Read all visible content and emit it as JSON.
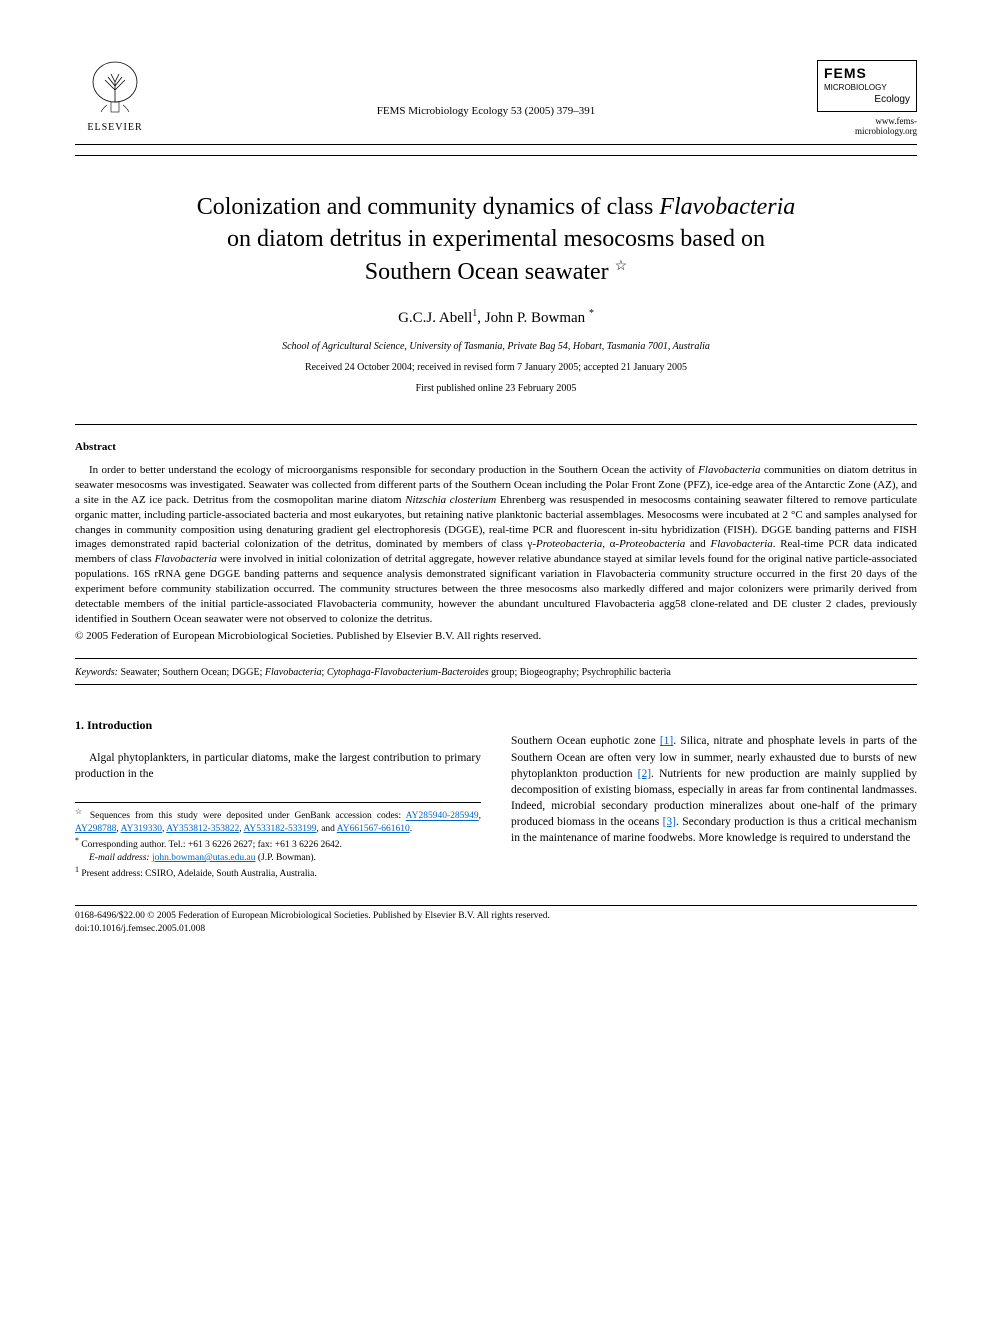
{
  "header": {
    "elsevier_label": "ELSEVIER",
    "citation": "FEMS Microbiology Ecology 53 (2005) 379–391",
    "fems_title": "FEMS",
    "fems_sub1": "MICROBIOLOGY",
    "fems_sub2": "Ecology",
    "fems_url": "www.fems-microbiology.org"
  },
  "title": {
    "line1_pre": "Colonization and community dynamics of class ",
    "line1_ital": "Flavobacteria",
    "line2": "on diatom detritus in experimental mesocosms based on",
    "line3": "Southern Ocean seawater",
    "star": "☆"
  },
  "authors": {
    "a1_name": "G.C.J. Abell",
    "a1_sup": "1",
    "sep": ", ",
    "a2_name": "John P. Bowman",
    "a2_sup": "*"
  },
  "affiliation": "School of Agricultural Science, University of Tasmania, Private Bag 54, Hobart, Tasmania 7001, Australia",
  "dates": "Received 24 October 2004; received in revised form 7 January 2005; accepted 21 January 2005",
  "pub_online": "First published online 23 February 2005",
  "abstract": {
    "heading": "Abstract",
    "body_parts": [
      {
        "t": "In order to better understand the ecology of microorganisms responsible for secondary production in the Southern Ocean the activity of "
      },
      {
        "t": "Flavobacteria",
        "i": true
      },
      {
        "t": " communities on diatom detritus in seawater mesocosms was investigated. Seawater was collected from different parts of the Southern Ocean including the Polar Front Zone (PFZ), ice-edge area of the Antarctic Zone (AZ), and a site in the AZ ice pack. Detritus from the cosmopolitan marine diatom "
      },
      {
        "t": "Nitzschia closterium",
        "i": true
      },
      {
        "t": " Ehrenberg was resuspended in mesocosms containing seawater filtered to remove particulate organic matter, including particle-associated bacteria and most eukaryotes, but retaining native planktonic bacterial assemblages. Mesocosms were incubated at 2 °C and samples analysed for changes in community composition using denaturing gradient gel electrophoresis (DGGE), real-time PCR and fluorescent in-situ hybridization (FISH). DGGE banding patterns and FISH images demonstrated rapid bacterial colonization of the detritus, dominated by members of class γ-"
      },
      {
        "t": "Proteobacteria",
        "i": true
      },
      {
        "t": ", α-"
      },
      {
        "t": "Proteobacteria",
        "i": true
      },
      {
        "t": " and "
      },
      {
        "t": "Flavobacteria",
        "i": true
      },
      {
        "t": ". Real-time PCR data indicated members of class "
      },
      {
        "t": "Flavobacteria",
        "i": true
      },
      {
        "t": " were involved in initial colonization of detrital aggregate, however relative abundance stayed at similar levels found for the original native particle-associated populations. 16S rRNA gene DGGE banding patterns and sequence analysis demonstrated significant variation in Flavobacteria community structure occurred in the first 20 days of the experiment before community stabilization occurred. The community structures between the three mesocosms also markedly differed and major colonizers were primarily derived from detectable members of the initial particle-associated Flavobacteria community, however the abundant uncultured Flavobacteria agg58 clone-related and DE cluster 2 clades, previously identified in Southern Ocean seawater were not observed to colonize the detritus."
      }
    ],
    "copyright": "© 2005 Federation of European Microbiological Societies. Published by Elsevier B.V. All rights reserved."
  },
  "keywords": {
    "label": "Keywords:",
    "parts": [
      {
        "t": " Seawater; Southern Ocean; DGGE; "
      },
      {
        "t": "Flavobacteria",
        "i": true
      },
      {
        "t": "; "
      },
      {
        "t": "Cytophaga-Flavobacterium-Bacteroides",
        "i": true
      },
      {
        "t": " group; Biogeography; Psychrophilic bacteria"
      }
    ]
  },
  "section1": {
    "heading": "1. Introduction",
    "col1": "Algal phytoplankters, in particular diatoms, make the largest contribution to primary production in the",
    "col2_parts": [
      {
        "t": "Southern Ocean euphotic zone "
      },
      {
        "t": "[1]",
        "link": true
      },
      {
        "t": ". Silica, nitrate and phosphate levels in parts of the Southern Ocean are often very low in summer, nearly exhausted due to bursts of new phytoplankton production "
      },
      {
        "t": "[2]",
        "link": true
      },
      {
        "t": ". Nutrients for new production are mainly supplied by decomposition of existing biomass, especially in areas far from continental landmasses. Indeed, microbial secondary production mineralizes about one-half of the primary produced biomass in the oceans "
      },
      {
        "t": "[3]",
        "link": true
      },
      {
        "t": ". Secondary production is thus a critical mechanism in the maintenance of marine foodwebs. More knowledge is required to understand the"
      }
    ]
  },
  "footnotes": {
    "star_pre": "Sequences from this study were deposited under GenBank accession codes: ",
    "accessions": [
      "AY285940-285949",
      "AY298788",
      "AY319330",
      "AY353812-353822",
      "AY533182-533199",
      "AY661567-661610"
    ],
    "star_post": ".",
    "corr_label": "*",
    "corr_text": " Corresponding author. Tel.: +61 3 6226 2627; fax: +61 3 6226 2642.",
    "email_label": "E-mail address:",
    "email": "john.bowman@utas.edu.au",
    "email_post": " (J.P. Bowman).",
    "present_label": "1",
    "present_text": " Present address: CSIRO, Adelaide, South Australia, Australia."
  },
  "footer": {
    "line1": "0168-6496/$22.00 © 2005 Federation of European Microbiological Societies. Published by Elsevier B.V. All rights reserved.",
    "line2": "doi:10.1016/j.femsec.2005.01.008"
  },
  "colors": {
    "text": "#000000",
    "link": "#0066cc",
    "background": "#ffffff"
  }
}
